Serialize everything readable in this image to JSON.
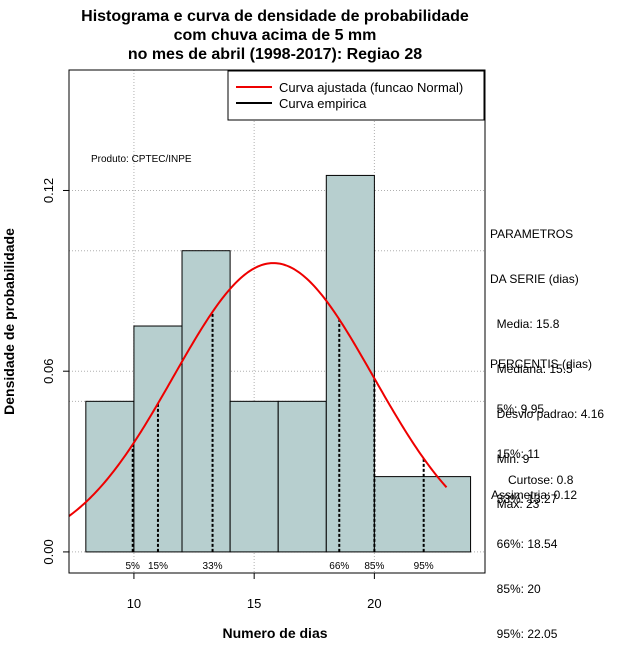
{
  "chart_data": {
    "type": "bar",
    "title": [
      "Histograma e curva de densidade de probabilidade",
      "com chuva acima de 5 mm",
      "no mes de abril (1998-2017): Regiao 28"
    ],
    "xlabel": "Numero de dias",
    "ylabel": "Densidade de probabilidade",
    "xlim": [
      7.3,
      24.6
    ],
    "ylim": [
      -0.007,
      0.16
    ],
    "x_ticks": [
      10,
      15,
      20
    ],
    "y_ticks": [
      0.0,
      0.06,
      0.12
    ],
    "y_tick_labels": [
      "0.00",
      "0.06",
      "0.12"
    ],
    "gridlines_y": [
      0.1,
      0.05
    ],
    "grid": true,
    "bins": [
      {
        "x0": 8,
        "x1": 10,
        "density": 0.05
      },
      {
        "x0": 10,
        "x1": 12,
        "density": 0.075
      },
      {
        "x0": 12,
        "x1": 14,
        "density": 0.1
      },
      {
        "x0": 14,
        "x1": 16,
        "density": 0.05
      },
      {
        "x0": 16,
        "x1": 18,
        "density": 0.05
      },
      {
        "x0": 18,
        "x1": 20,
        "density": 0.125
      },
      {
        "x0": 20,
        "x1": 24,
        "density": 0.025
      }
    ],
    "bar_color": "#b7cfcf",
    "curve": {
      "name": "Curva ajustada (funcao Normal)",
      "mean": 15.8,
      "sd": 4.16,
      "x_from": 7.3,
      "x_to": 23,
      "color": "#ee0000"
    },
    "percentile_lines": [
      {
        "label": "5%",
        "x": 9.95
      },
      {
        "label": "15%",
        "x": 11
      },
      {
        "label": "33%",
        "x": 13.27
      },
      {
        "label": "66%",
        "x": 18.54
      },
      {
        "label": "85%",
        "x": 20
      },
      {
        "label": "95%",
        "x": 22.05
      }
    ],
    "legend": [
      {
        "label": "Curva ajustada (funcao Normal)",
        "color": "#ee0000"
      },
      {
        "label": "Curva empirica",
        "color": "#000000"
      }
    ],
    "legend_position": "top-right",
    "annotation": "Produto: CPTEC/INPE"
  },
  "parametros": {
    "lines": [
      "PARAMETROS",
      "DA SERIE (dias)",
      "  Media: 15.8",
      "  Mediana: 15.5",
      "  Desvio padrao: 4.16",
      "  Min: 9",
      "  Max: 23"
    ]
  },
  "percentis": {
    "lines": [
      "PERCENTIS (dias)",
      "  5%: 9.95",
      "  15%: 11",
      "  33%: 13.27",
      "  66%: 18.54",
      "  85%: 20",
      "  95%: 22.05"
    ]
  },
  "extra": {
    "curtose": "Curtose: 0.8",
    "assimetria": "Assimetria: 0.12"
  }
}
